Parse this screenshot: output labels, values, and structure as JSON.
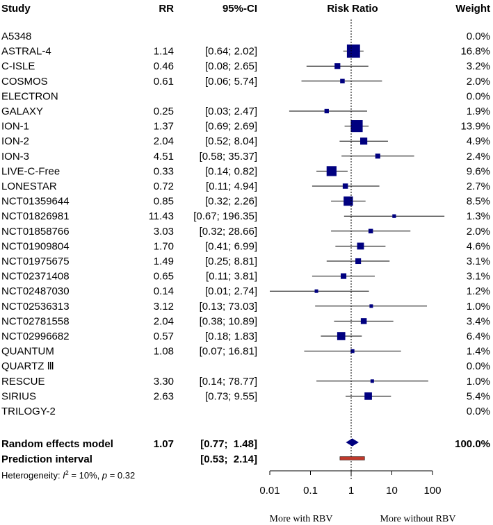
{
  "chart_data": {
    "type": "forest",
    "scale": "log",
    "headers": {
      "study": "Study",
      "rr": "RR",
      "ci": "95%-CI",
      "plot": "Risk Ratio",
      "weight": "Weight"
    },
    "studies": [
      {
        "name": "A5348",
        "rr": "",
        "ci_text": "",
        "weight_text": "0.0%",
        "rr_value": null,
        "lower": null,
        "upper": null,
        "weight": 0.0
      },
      {
        "name": "ASTRAL-4",
        "rr": "1.14",
        "ci_text": "[0.64;  2.02]",
        "weight_text": "16.8%",
        "rr_value": 1.14,
        "lower": 0.64,
        "upper": 2.02,
        "weight": 16.8
      },
      {
        "name": "C-ISLE",
        "rr": "0.46",
        "ci_text": "[0.08;  2.65]",
        "weight_text": "3.2%",
        "rr_value": 0.46,
        "lower": 0.08,
        "upper": 2.65,
        "weight": 3.2
      },
      {
        "name": "COSMOS",
        "rr": "0.61",
        "ci_text": "[0.06;  5.74]",
        "weight_text": "2.0%",
        "rr_value": 0.61,
        "lower": 0.06,
        "upper": 5.74,
        "weight": 2.0
      },
      {
        "name": "ELECTRON",
        "rr": "",
        "ci_text": "",
        "weight_text": "0.0%",
        "rr_value": null,
        "lower": null,
        "upper": null,
        "weight": 0.0
      },
      {
        "name": "GALAXY",
        "rr": "0.25",
        "ci_text": "[0.03;  2.47]",
        "weight_text": "1.9%",
        "rr_value": 0.25,
        "lower": 0.03,
        "upper": 2.47,
        "weight": 1.9
      },
      {
        "name": "ION-1",
        "rr": "1.37",
        "ci_text": "[0.69;  2.69]",
        "weight_text": "13.9%",
        "rr_value": 1.37,
        "lower": 0.69,
        "upper": 2.69,
        "weight": 13.9
      },
      {
        "name": "ION-2",
        "rr": "2.04",
        "ci_text": "[0.52;  8.04]",
        "weight_text": "4.9%",
        "rr_value": 2.04,
        "lower": 0.52,
        "upper": 8.04,
        "weight": 4.9
      },
      {
        "name": "ION-3",
        "rr": "4.51",
        "ci_text": "[0.58;  35.37]",
        "weight_text": "2.4%",
        "rr_value": 4.51,
        "lower": 0.58,
        "upper": 35.37,
        "weight": 2.4
      },
      {
        "name": "LIVE-C-Free",
        "rr": "0.33",
        "ci_text": "[0.14;  0.82]",
        "weight_text": "9.6%",
        "rr_value": 0.33,
        "lower": 0.14,
        "upper": 0.82,
        "weight": 9.6
      },
      {
        "name": "LONESTAR",
        "rr": "0.72",
        "ci_text": "[0.11;  4.94]",
        "weight_text": "2.7%",
        "rr_value": 0.72,
        "lower": 0.11,
        "upper": 4.94,
        "weight": 2.7
      },
      {
        "name": "NCT01359644",
        "rr": "0.85",
        "ci_text": "[0.32;  2.26]",
        "weight_text": "8.5%",
        "rr_value": 0.85,
        "lower": 0.32,
        "upper": 2.26,
        "weight": 8.5
      },
      {
        "name": "NCT01826981",
        "rr": "11.43",
        "ci_text": "[0.67; 196.35]",
        "weight_text": "1.3%",
        "rr_value": 11.43,
        "lower": 0.67,
        "upper": 196.35,
        "weight": 1.3
      },
      {
        "name": "NCT01858766",
        "rr": "3.03",
        "ci_text": "[0.32;  28.66]",
        "weight_text": "2.0%",
        "rr_value": 3.03,
        "lower": 0.32,
        "upper": 28.66,
        "weight": 2.0
      },
      {
        "name": "NCT01909804",
        "rr": "1.70",
        "ci_text": "[0.41;  6.99]",
        "weight_text": "4.6%",
        "rr_value": 1.7,
        "lower": 0.41,
        "upper": 6.99,
        "weight": 4.6
      },
      {
        "name": "NCT01975675",
        "rr": "1.49",
        "ci_text": "[0.25;  8.81]",
        "weight_text": "3.1%",
        "rr_value": 1.49,
        "lower": 0.25,
        "upper": 8.81,
        "weight": 3.1
      },
      {
        "name": "NCT02371408",
        "rr": "0.65",
        "ci_text": "[0.11;  3.81]",
        "weight_text": "3.1%",
        "rr_value": 0.65,
        "lower": 0.11,
        "upper": 3.81,
        "weight": 3.1
      },
      {
        "name": "NCT02487030",
        "rr": "0.14",
        "ci_text": "[0.01;  2.74]",
        "weight_text": "1.2%",
        "rr_value": 0.14,
        "lower": 0.01,
        "upper": 2.74,
        "weight": 1.2
      },
      {
        "name": "NCT02536313",
        "rr": "3.12",
        "ci_text": "[0.13;  73.03]",
        "weight_text": "1.0%",
        "rr_value": 3.12,
        "lower": 0.13,
        "upper": 73.03,
        "weight": 1.0
      },
      {
        "name": "NCT02781558",
        "rr": "2.04",
        "ci_text": "[0.38;  10.89]",
        "weight_text": "3.4%",
        "rr_value": 2.04,
        "lower": 0.38,
        "upper": 10.89,
        "weight": 3.4
      },
      {
        "name": "NCT02996682",
        "rr": "0.57",
        "ci_text": "[0.18;  1.83]",
        "weight_text": "6.4%",
        "rr_value": 0.57,
        "lower": 0.18,
        "upper": 1.83,
        "weight": 6.4
      },
      {
        "name": "QUANTUM",
        "rr": "1.08",
        "ci_text": "[0.07;  16.81]",
        "weight_text": "1.4%",
        "rr_value": 1.08,
        "lower": 0.07,
        "upper": 16.81,
        "weight": 1.4
      },
      {
        "name": "QUARTZ Ⅲ",
        "rr": "",
        "ci_text": "",
        "weight_text": "0.0%",
        "rr_value": null,
        "lower": null,
        "upper": null,
        "weight": 0.0
      },
      {
        "name": "RESCUE",
        "rr": "3.30",
        "ci_text": "[0.14;  78.77]",
        "weight_text": "1.0%",
        "rr_value": 3.3,
        "lower": 0.14,
        "upper": 78.77,
        "weight": 1.0
      },
      {
        "name": "SIRIUS",
        "rr": "2.63",
        "ci_text": "[0.73;  9.55]",
        "weight_text": "5.4%",
        "rr_value": 2.63,
        "lower": 0.73,
        "upper": 9.55,
        "weight": 5.4
      },
      {
        "name": "TRILOGY-2",
        "rr": "",
        "ci_text": "",
        "weight_text": "0.0%",
        "rr_value": null,
        "lower": null,
        "upper": null,
        "weight": 0.0
      }
    ],
    "random_effects": {
      "label": "Random effects model",
      "rr": "1.07",
      "ci_text": "[0.77;  1.48]",
      "weight_text": "100.0%",
      "rr_value": 1.07,
      "lower": 0.77,
      "upper": 1.48
    },
    "prediction_interval": {
      "label": "Prediction interval",
      "ci_text": "[0.53;  2.14]",
      "lower": 0.53,
      "upper": 2.14
    },
    "heterogeneity": {
      "prefix": "Heterogeneity: ",
      "i2_symbol": "I",
      "i2_sup": "2",
      "i2_value": " = 10%, ",
      "p_symbol": "p",
      "p_value": " = 0.32"
    },
    "x_ticks": [
      0.01,
      0.1,
      1,
      10,
      100
    ],
    "x_tick_labels": [
      "0.01",
      "0.1",
      "1",
      "10",
      "100"
    ],
    "xlim": [
      0.01,
      100
    ],
    "reference_line": 1,
    "favours_left": "More with RBV",
    "favours_right": "More without RBV",
    "colors": {
      "study_square": "#000080",
      "summary_diamond": "#000080",
      "prediction_bar": "#c0392b",
      "lines": "#000000"
    }
  }
}
